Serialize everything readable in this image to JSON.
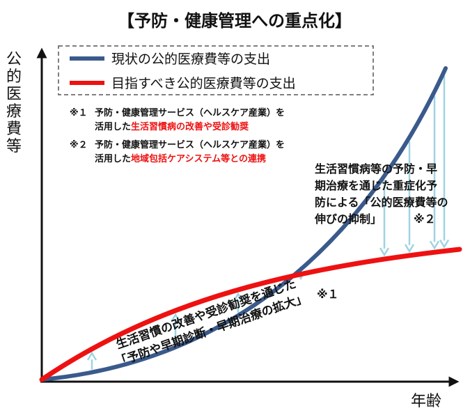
{
  "title": "【予防・健康管理への重点化】",
  "y_axis_label": [
    "公",
    "的",
    "医",
    "療",
    "費",
    "等"
  ],
  "x_axis_label": "年齢",
  "legend": {
    "current_label": "現状の公的医療費等の支出",
    "target_label": "目指すべき公的医療費等の支出"
  },
  "notes": [
    {
      "mark": "※１",
      "line1": "予防・健康管理サービス（ヘルスケア産業）を",
      "line2_prefix": "活用した",
      "line2_highlight": "生活習慣病の改善や受診勧奨"
    },
    {
      "mark": "※２",
      "line1": "予防・健康管理サービス（ヘルスケア産業）を",
      "line2_prefix": "活用した",
      "line2_highlight": "地域包括ケアシステム等との連携"
    }
  ],
  "upper_annotation": {
    "lines": [
      "生活習慣病等の予防・早",
      "期治療を通じた重症化予",
      "防による「公的医療費等の",
      "伸びの抑制」"
    ],
    "mark": "※２"
  },
  "lower_annotation": {
    "lines": [
      "生活習慣の改善や受診勧奨を通じた",
      "「予防や早期診断・早期治療の拡大」"
    ],
    "mark": "※１"
  },
  "colors": {
    "current_line": "#3a5a8c",
    "target_line": "#ee1111",
    "arrow": "#9fd3e3",
    "highlight_text": "#ee1111",
    "axis": "#111111"
  },
  "arrows_up": [
    0.12,
    0.32,
    0.47,
    0.62
  ],
  "arrows_down": [
    0.82,
    0.88,
    0.94,
    0.995
  ]
}
